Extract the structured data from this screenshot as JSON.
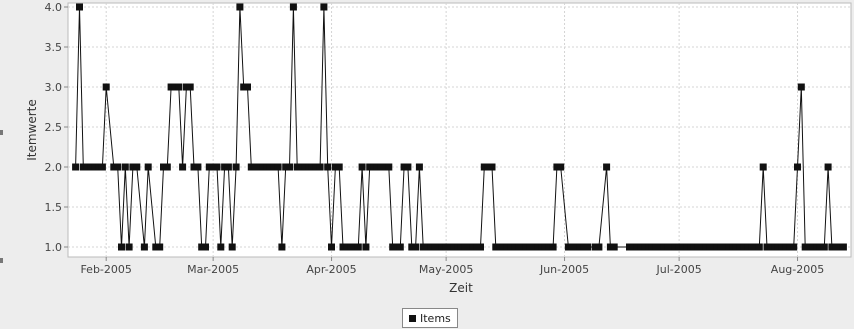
{
  "chart_data": {
    "type": "line",
    "xlabel": "Zeit",
    "ylabel": "Itemwerte",
    "xlim": [
      "2005-01-22",
      "2005-08-15"
    ],
    "ylim": [
      0.875,
      4.05
    ],
    "y_ticks": [
      1.0,
      1.5,
      2.0,
      2.5,
      3.0,
      3.5,
      4.0
    ],
    "y_tick_labels": [
      "1.0",
      "1.5",
      "2.0",
      "2.5",
      "3.0",
      "3.5",
      "4.0"
    ],
    "x_ticks": [
      "2005-02-01",
      "2005-03-01",
      "2005-04-01",
      "2005-05-01",
      "2005-06-01",
      "2005-07-01",
      "2005-08-01"
    ],
    "x_tick_labels": [
      "Feb-2005",
      "Mar-2005",
      "Apr-2005",
      "May-2005",
      "Jun-2005",
      "Jul-2005",
      "Aug-2005"
    ],
    "grid": true,
    "legend_position": "bottom",
    "series": [
      {
        "name": "Items",
        "color": "#111111",
        "marker": "square",
        "points": [
          [
            "2005-01-24",
            2
          ],
          [
            "2005-01-25",
            4
          ],
          [
            "2005-01-26",
            2
          ],
          [
            "2005-01-27",
            2
          ],
          [
            "2005-01-28",
            2
          ],
          [
            "2005-01-29",
            2
          ],
          [
            "2005-01-30",
            2
          ],
          [
            "2005-01-31",
            2
          ],
          [
            "2005-02-01",
            3
          ],
          [
            "2005-02-03",
            2
          ],
          [
            "2005-02-04",
            2
          ],
          [
            "2005-02-05",
            1
          ],
          [
            "2005-02-06",
            2
          ],
          [
            "2005-02-07",
            1
          ],
          [
            "2005-02-08",
            2
          ],
          [
            "2005-02-09",
            2
          ],
          [
            "2005-02-11",
            1
          ],
          [
            "2005-02-12",
            2
          ],
          [
            "2005-02-14",
            1
          ],
          [
            "2005-02-15",
            1
          ],
          [
            "2005-02-16",
            2
          ],
          [
            "2005-02-17",
            2
          ],
          [
            "2005-02-18",
            3
          ],
          [
            "2005-02-19",
            3
          ],
          [
            "2005-02-20",
            3
          ],
          [
            "2005-02-21",
            2
          ],
          [
            "2005-02-22",
            3
          ],
          [
            "2005-02-23",
            3
          ],
          [
            "2005-02-24",
            2
          ],
          [
            "2005-02-25",
            2
          ],
          [
            "2005-02-26",
            1
          ],
          [
            "2005-02-27",
            1
          ],
          [
            "2005-02-28",
            2
          ],
          [
            "2005-03-01",
            2
          ],
          [
            "2005-03-02",
            2
          ],
          [
            "2005-03-03",
            1
          ],
          [
            "2005-03-04",
            2
          ],
          [
            "2005-03-05",
            2
          ],
          [
            "2005-03-06",
            1
          ],
          [
            "2005-03-07",
            2
          ],
          [
            "2005-03-08",
            4
          ],
          [
            "2005-03-09",
            3
          ],
          [
            "2005-03-10",
            3
          ],
          [
            "2005-03-11",
            2
          ],
          [
            "2005-03-12",
            2
          ],
          [
            "2005-03-13",
            2
          ],
          [
            "2005-03-14",
            2
          ],
          [
            "2005-03-15",
            2
          ],
          [
            "2005-03-16",
            2
          ],
          [
            "2005-03-17",
            2
          ],
          [
            "2005-03-18",
            2
          ],
          [
            "2005-03-19",
            1
          ],
          [
            "2005-03-20",
            2
          ],
          [
            "2005-03-21",
            2
          ],
          [
            "2005-03-22",
            4
          ],
          [
            "2005-03-23",
            2
          ],
          [
            "2005-03-24",
            2
          ],
          [
            "2005-03-25",
            2
          ],
          [
            "2005-03-26",
            2
          ],
          [
            "2005-03-27",
            2
          ],
          [
            "2005-03-28",
            2
          ],
          [
            "2005-03-29",
            2
          ],
          [
            "2005-03-30",
            4
          ],
          [
            "2005-03-31",
            2
          ],
          [
            "2005-04-01",
            1
          ],
          [
            "2005-04-02",
            2
          ],
          [
            "2005-04-03",
            2
          ],
          [
            "2005-04-04",
            1
          ],
          [
            "2005-04-05",
            1
          ],
          [
            "2005-04-06",
            1
          ],
          [
            "2005-04-07",
            1
          ],
          [
            "2005-04-08",
            1
          ],
          [
            "2005-04-09",
            2
          ],
          [
            "2005-04-10",
            1
          ],
          [
            "2005-04-11",
            2
          ],
          [
            "2005-04-12",
            2
          ],
          [
            "2005-04-13",
            2
          ],
          [
            "2005-04-14",
            2
          ],
          [
            "2005-04-15",
            2
          ],
          [
            "2005-04-16",
            2
          ],
          [
            "2005-04-17",
            1
          ],
          [
            "2005-04-18",
            1
          ],
          [
            "2005-04-19",
            1
          ],
          [
            "2005-04-20",
            2
          ],
          [
            "2005-04-21",
            2
          ],
          [
            "2005-04-22",
            1
          ],
          [
            "2005-04-23",
            1
          ],
          [
            "2005-04-24",
            2
          ],
          [
            "2005-04-25",
            1
          ],
          [
            "2005-04-26",
            1
          ],
          [
            "2005-04-27",
            1
          ],
          [
            "2005-04-28",
            1
          ],
          [
            "2005-04-29",
            1
          ],
          [
            "2005-04-30",
            1
          ],
          [
            "2005-05-01",
            1
          ],
          [
            "2005-05-02",
            1
          ],
          [
            "2005-05-03",
            1
          ],
          [
            "2005-05-04",
            1
          ],
          [
            "2005-05-05",
            1
          ],
          [
            "2005-05-06",
            1
          ],
          [
            "2005-05-07",
            1
          ],
          [
            "2005-05-08",
            1
          ],
          [
            "2005-05-09",
            1
          ],
          [
            "2005-05-10",
            1
          ],
          [
            "2005-05-11",
            2
          ],
          [
            "2005-05-12",
            2
          ],
          [
            "2005-05-13",
            2
          ],
          [
            "2005-05-14",
            1
          ],
          [
            "2005-05-15",
            1
          ],
          [
            "2005-05-16",
            1
          ],
          [
            "2005-05-17",
            1
          ],
          [
            "2005-05-18",
            1
          ],
          [
            "2005-05-19",
            1
          ],
          [
            "2005-05-20",
            1
          ],
          [
            "2005-05-21",
            1
          ],
          [
            "2005-05-22",
            1
          ],
          [
            "2005-05-23",
            1
          ],
          [
            "2005-05-24",
            1
          ],
          [
            "2005-05-25",
            1
          ],
          [
            "2005-05-26",
            1
          ],
          [
            "2005-05-27",
            1
          ],
          [
            "2005-05-28",
            1
          ],
          [
            "2005-05-29",
            1
          ],
          [
            "2005-05-30",
            2
          ],
          [
            "2005-05-31",
            2
          ],
          [
            "2005-06-02",
            1
          ],
          [
            "2005-06-03",
            1
          ],
          [
            "2005-06-04",
            1
          ],
          [
            "2005-06-05",
            1
          ],
          [
            "2005-06-06",
            1
          ],
          [
            "2005-06-07",
            1
          ],
          [
            "2005-06-09",
            1
          ],
          [
            "2005-06-10",
            1
          ],
          [
            "2005-06-12",
            2
          ],
          [
            "2005-06-13",
            1
          ],
          [
            "2005-06-14",
            1
          ],
          [
            "2005-06-18",
            1
          ],
          [
            "2005-06-19",
            1
          ],
          [
            "2005-06-20",
            1
          ],
          [
            "2005-06-21",
            1
          ],
          [
            "2005-06-22",
            1
          ],
          [
            "2005-06-23",
            1
          ],
          [
            "2005-06-24",
            1
          ],
          [
            "2005-06-25",
            1
          ],
          [
            "2005-06-26",
            1
          ],
          [
            "2005-06-27",
            1
          ],
          [
            "2005-06-28",
            1
          ],
          [
            "2005-06-29",
            1
          ],
          [
            "2005-06-30",
            1
          ],
          [
            "2005-07-01",
            1
          ],
          [
            "2005-07-02",
            1
          ],
          [
            "2005-07-03",
            1
          ],
          [
            "2005-07-04",
            1
          ],
          [
            "2005-07-05",
            1
          ],
          [
            "2005-07-06",
            1
          ],
          [
            "2005-07-07",
            1
          ],
          [
            "2005-07-08",
            1
          ],
          [
            "2005-07-09",
            1
          ],
          [
            "2005-07-10",
            1
          ],
          [
            "2005-07-11",
            1
          ],
          [
            "2005-07-12",
            1
          ],
          [
            "2005-07-13",
            1
          ],
          [
            "2005-07-14",
            1
          ],
          [
            "2005-07-15",
            1
          ],
          [
            "2005-07-16",
            1
          ],
          [
            "2005-07-17",
            1
          ],
          [
            "2005-07-18",
            1
          ],
          [
            "2005-07-19",
            1
          ],
          [
            "2005-07-20",
            1
          ],
          [
            "2005-07-21",
            1
          ],
          [
            "2005-07-22",
            1
          ],
          [
            "2005-07-23",
            2
          ],
          [
            "2005-07-24",
            1
          ],
          [
            "2005-07-25",
            1
          ],
          [
            "2005-07-26",
            1
          ],
          [
            "2005-07-27",
            1
          ],
          [
            "2005-07-28",
            1
          ],
          [
            "2005-07-29",
            1
          ],
          [
            "2005-07-30",
            1
          ],
          [
            "2005-07-31",
            1
          ],
          [
            "2005-08-01",
            2
          ],
          [
            "2005-08-02",
            3
          ],
          [
            "2005-08-03",
            1
          ],
          [
            "2005-08-04",
            1
          ],
          [
            "2005-08-05",
            1
          ],
          [
            "2005-08-06",
            1
          ],
          [
            "2005-08-07",
            1
          ],
          [
            "2005-08-08",
            1
          ],
          [
            "2005-08-09",
            2
          ],
          [
            "2005-08-10",
            1
          ],
          [
            "2005-08-11",
            1
          ],
          [
            "2005-08-12",
            1
          ],
          [
            "2005-08-13",
            1
          ]
        ]
      }
    ]
  }
}
